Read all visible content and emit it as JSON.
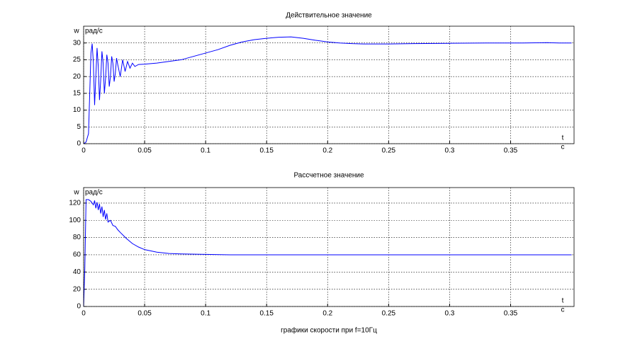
{
  "chart_data": [
    {
      "type": "line",
      "title": "Действительное значение",
      "ylabel": "w",
      "yunit": "рад/с",
      "xlabel": "t",
      "xunit": "с",
      "xlim": [
        0,
        0.402
      ],
      "ylim": [
        0,
        35
      ],
      "xticks": [
        0,
        0.05,
        0.1,
        0.15,
        0.2,
        0.25,
        0.3,
        0.35
      ],
      "yticks": [
        0,
        5,
        10,
        15,
        20,
        25,
        30
      ],
      "grid": true,
      "color": "#0000ff",
      "x": [
        0,
        0.002,
        0.004,
        0.005,
        0.006,
        0.007,
        0.008,
        0.009,
        0.01,
        0.011,
        0.012,
        0.013,
        0.014,
        0.015,
        0.016,
        0.017,
        0.018,
        0.019,
        0.02,
        0.021,
        0.022,
        0.023,
        0.024,
        0.025,
        0.026,
        0.027,
        0.028,
        0.03,
        0.032,
        0.034,
        0.036,
        0.038,
        0.04,
        0.042,
        0.045,
        0.05,
        0.06,
        0.07,
        0.08,
        0.09,
        0.1,
        0.11,
        0.12,
        0.13,
        0.14,
        0.15,
        0.16,
        0.17,
        0.18,
        0.19,
        0.2,
        0.21,
        0.22,
        0.23,
        0.24,
        0.25,
        0.27,
        0.3,
        0.33,
        0.36,
        0.38,
        0.39,
        0.4
      ],
      "values": [
        0,
        0.5,
        3,
        15,
        27,
        29.8,
        24,
        11.5,
        20,
        28.5,
        23,
        13,
        19,
        27.5,
        24,
        15,
        19.5,
        26.5,
        24,
        17,
        20,
        26,
        24,
        18.5,
        21,
        25.5,
        23.5,
        20,
        25,
        21.5,
        24.5,
        22.5,
        24,
        23,
        23.6,
        23.7,
        24,
        24.5,
        25,
        26,
        27,
        28,
        29.3,
        30.3,
        31,
        31.4,
        31.7,
        31.8,
        31.4,
        30.8,
        30.3,
        30,
        29.8,
        29.7,
        29.7,
        29.7,
        29.8,
        29.9,
        30,
        30,
        30.1,
        30,
        30
      ]
    },
    {
      "type": "line",
      "title": "Рассчетное значение",
      "ylabel": "w",
      "yunit": "рад/с",
      "xlabel": "t",
      "xunit": "с",
      "xlim": [
        0,
        0.402
      ],
      "ylim": [
        0,
        138
      ],
      "xticks": [
        0,
        0.05,
        0.1,
        0.15,
        0.2,
        0.25,
        0.3,
        0.35
      ],
      "yticks": [
        0,
        20,
        40,
        60,
        80,
        100,
        120
      ],
      "grid": true,
      "color": "#0000ff",
      "x": [
        0,
        0.001,
        0.002,
        0.004,
        0.006,
        0.008,
        0.009,
        0.01,
        0.011,
        0.012,
        0.013,
        0.014,
        0.015,
        0.016,
        0.017,
        0.018,
        0.019,
        0.02,
        0.022,
        0.024,
        0.026,
        0.028,
        0.03,
        0.035,
        0.04,
        0.045,
        0.05,
        0.06,
        0.07,
        0.08,
        0.1,
        0.12,
        0.15,
        0.2,
        0.3,
        0.4
      ],
      "values": [
        0,
        45,
        124,
        124,
        122,
        118,
        123,
        114,
        121,
        112,
        119,
        108,
        116,
        104,
        112,
        101,
        108,
        98,
        100,
        94,
        93,
        89,
        86,
        79,
        73,
        69,
        66,
        63,
        61.5,
        61,
        60.5,
        60,
        60,
        60,
        60,
        60
      ]
    }
  ],
  "caption": "графики скорости при f=10Гц"
}
